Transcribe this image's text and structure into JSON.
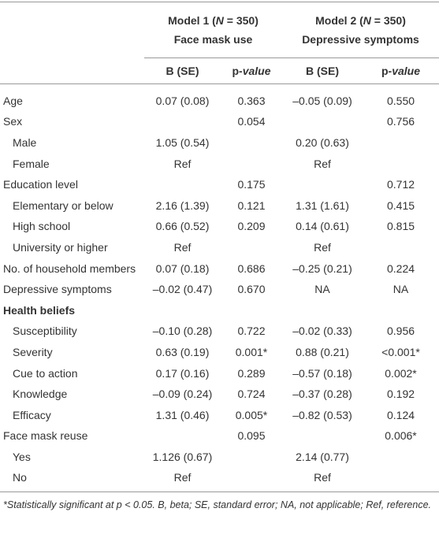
{
  "table": {
    "models": [
      {
        "title": [
          "Model 1 (",
          "N",
          " = 350)"
        ],
        "subtitle": "Face mask use"
      },
      {
        "title": [
          "Model 2 (",
          "N",
          " = 350)"
        ],
        "subtitle": "Depressive symptoms"
      }
    ],
    "columns": [
      {
        "text": [
          "B (SE)"
        ]
      },
      {
        "text": [
          "p",
          "-value"
        ]
      },
      {
        "text": [
          "B (SE)"
        ]
      },
      {
        "text": [
          "p",
          "-value"
        ]
      }
    ],
    "rows": [
      {
        "label": "Age",
        "cells": [
          "0.07 (0.08)",
          "0.363",
          "–0.05 (0.09)",
          "0.550"
        ]
      },
      {
        "label": "Sex",
        "cells": [
          null,
          "0.054",
          null,
          "0.756"
        ],
        "children": [
          {
            "label": "Male",
            "cells": [
              "1.05 (0.54)",
              null,
              "0.20 (0.63)",
              null
            ]
          },
          {
            "label": "Female",
            "cells": [
              "Ref",
              null,
              "Ref",
              null
            ]
          }
        ]
      },
      {
        "label": "Education level",
        "cells": [
          null,
          "0.175",
          null,
          "0.712"
        ],
        "children": [
          {
            "label": "Elementary or below",
            "cells": [
              "2.16 (1.39)",
              "0.121",
              "1.31 (1.61)",
              "0.415"
            ]
          },
          {
            "label": "High school",
            "cells": [
              "0.66 (0.52)",
              "0.209",
              "0.14 (0.61)",
              "0.815"
            ]
          },
          {
            "label": "University or higher",
            "cells": [
              "Ref",
              null,
              "Ref",
              null
            ]
          }
        ]
      },
      {
        "label": "No. of household members",
        "cells": [
          "0.07 (0.18)",
          "0.686",
          "–0.25 (0.21)",
          "0.224"
        ]
      },
      {
        "label": "Depressive symptoms",
        "cells": [
          "–0.02 (0.47)",
          "0.670",
          "NA",
          "NA"
        ]
      },
      {
        "section": "Health beliefs",
        "children": [
          {
            "label": "Susceptibility",
            "cells": [
              "–0.10 (0.28)",
              "0.722",
              "–0.02 (0.33)",
              "0.956"
            ]
          },
          {
            "label": "Severity",
            "cells": [
              "0.63 (0.19)",
              "0.001*",
              "0.88 (0.21)",
              "<0.001*"
            ]
          },
          {
            "label": "Cue to action",
            "cells": [
              "0.17 (0.16)",
              "0.289",
              "–0.57 (0.18)",
              "0.002*"
            ]
          },
          {
            "label": "Knowledge",
            "cells": [
              "–0.09 (0.24)",
              "0.724",
              "–0.37 (0.28)",
              "0.192"
            ]
          },
          {
            "label": "Efficacy",
            "cells": [
              "1.31 (0.46)",
              "0.005*",
              "–0.82 (0.53)",
              "0.124"
            ]
          }
        ]
      },
      {
        "label": "Face mask reuse",
        "cells": [
          null,
          "0.095",
          null,
          "0.006*"
        ],
        "children": [
          {
            "label": "Yes",
            "cells": [
              "1.126 (0.67)",
              null,
              "2.14 (0.77)",
              null
            ]
          },
          {
            "label": "No",
            "cells": [
              "Ref",
              null,
              "Ref",
              null
            ]
          }
        ]
      }
    ],
    "note": "*Statistically significant at p < 0.05. B, beta; SE, standard error; NA, not applicable; Ref, reference."
  }
}
